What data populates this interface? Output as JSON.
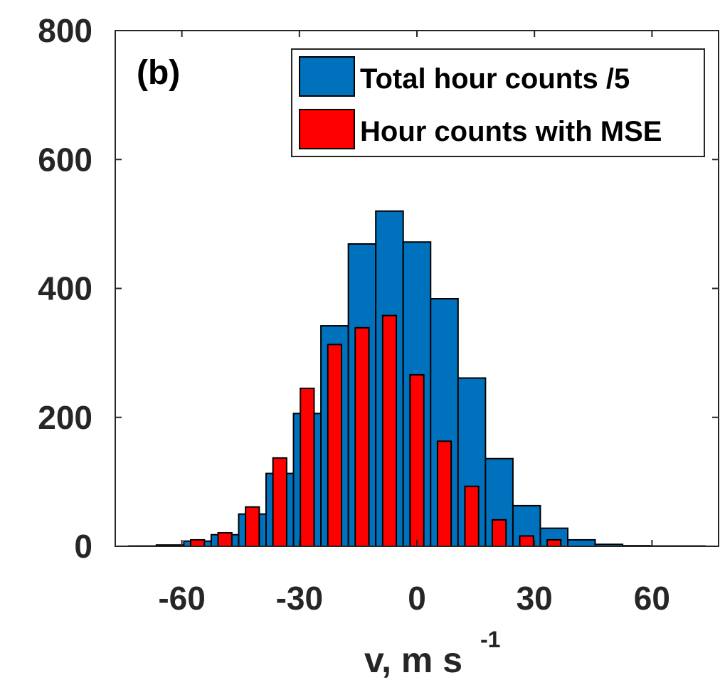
{
  "chart_data": {
    "type": "bar",
    "panel_label": "(b)",
    "xlabel": "v, m s",
    "xlabel_superscript": "-1",
    "ylabel": "",
    "xlim": [
      -77,
      77
    ],
    "ylim": [
      0,
      800
    ],
    "xticks": [
      -60,
      -30,
      0,
      30,
      60
    ],
    "yticks": [
      0,
      200,
      400,
      600,
      800
    ],
    "grid": false,
    "legend_position": "top-right",
    "bin_width": 7,
    "series": [
      {
        "name": "Total hour counts /5",
        "color": "#0072BD",
        "x": [
          -70,
          -63,
          -56,
          -49,
          -42,
          -35,
          -28,
          -21,
          -14,
          -7,
          0,
          7,
          14,
          21,
          28,
          35,
          42,
          49,
          56,
          63,
          70
        ],
        "values": [
          0.5,
          2,
          8,
          18,
          50,
          113,
          206,
          342,
          469,
          520,
          472,
          384,
          261,
          136,
          63,
          28,
          10,
          3,
          1,
          0.5,
          0.5
        ]
      },
      {
        "name": "Hour counts with MSE",
        "color": "#FF0000",
        "x": [
          -70,
          -63,
          -56,
          -49,
          -42,
          -35,
          -28,
          -21,
          -14,
          -7,
          0,
          7,
          14,
          21,
          28,
          35,
          42,
          49,
          56,
          63,
          70
        ],
        "values": [
          0,
          0,
          10,
          21,
          61,
          137,
          245,
          313,
          339,
          358,
          266,
          163,
          93,
          41,
          16,
          10,
          0,
          0,
          0,
          0,
          0
        ]
      }
    ]
  }
}
